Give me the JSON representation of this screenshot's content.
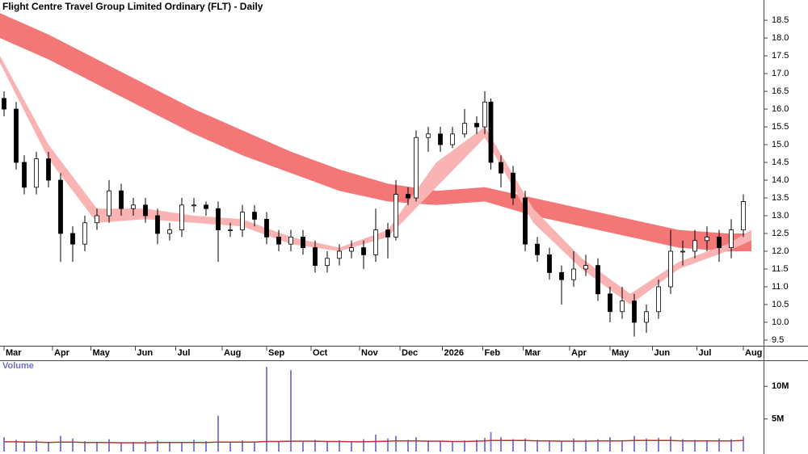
{
  "chart_data": [
    {
      "type": "candlestick",
      "title": "Flight Centre Travel Group Limited Ordinary (FLT) - Daily",
      "x": [
        2,
        8,
        12,
        18,
        24,
        30,
        36,
        42,
        48,
        54,
        60,
        66,
        72,
        78,
        84,
        90,
        96,
        102,
        108,
        114,
        120,
        126,
        132,
        138,
        144,
        150,
        156,
        162,
        168,
        174,
        180,
        186,
        192,
        196,
        202,
        206,
        212,
        218,
        224,
        230,
        236,
        240,
        243,
        248,
        254,
        260,
        266,
        272,
        278,
        284,
        290,
        296,
        302,
        308,
        314,
        320,
        326,
        332,
        338,
        344,
        350,
        356,
        362,
        368
      ],
      "open": [
        16.3,
        16.0,
        14.5,
        13.8,
        14.6,
        14.0,
        12.5,
        12.2,
        12.8,
        13.0,
        13.7,
        13.2,
        13.3,
        13.0,
        12.5,
        12.6,
        13.3,
        13.3,
        13.2,
        12.6,
        12.6,
        13.1,
        12.9,
        12.4,
        12.2,
        12.4,
        12.1,
        11.6,
        11.8,
        12.0,
        12.1,
        11.9,
        12.6,
        12.4,
        13.6,
        13.5,
        15.2,
        15.3,
        15.0,
        15.3,
        15.6,
        15.5,
        16.2,
        14.5,
        14.2,
        13.5,
        12.2,
        11.9,
        11.4,
        11.2,
        11.5,
        11.6,
        10.8,
        10.3,
        10.6,
        10.0,
        10.3,
        11.0,
        12.0,
        12.0,
        12.3,
        12.4,
        12.1,
        12.6
      ],
      "high": [
        16.5,
        16.2,
        14.7,
        14.8,
        14.8,
        14.2,
        12.7,
        13.0,
        13.2,
        14.0,
        13.9,
        13.5,
        13.5,
        13.2,
        12.8,
        13.5,
        13.5,
        13.4,
        13.4,
        12.8,
        13.3,
        13.3,
        13.1,
        12.6,
        12.6,
        12.6,
        12.3,
        12.0,
        12.2,
        12.3,
        12.3,
        13.2,
        12.8,
        14.0,
        13.8,
        15.4,
        15.5,
        15.5,
        15.5,
        16.0,
        15.8,
        16.5,
        16.3,
        14.7,
        14.4,
        13.7,
        12.4,
        12.1,
        11.6,
        12.0,
        11.9,
        11.8,
        11.0,
        11.0,
        10.8,
        10.5,
        11.2,
        12.6,
        12.3,
        12.6,
        12.7,
        12.6,
        12.9,
        13.6
      ],
      "low": [
        15.8,
        14.3,
        13.6,
        13.6,
        13.8,
        11.7,
        11.7,
        12.0,
        12.6,
        12.8,
        13.0,
        13.0,
        12.8,
        12.2,
        12.3,
        12.4,
        13.1,
        13.0,
        11.7,
        12.4,
        12.4,
        12.7,
        12.2,
        12.0,
        12.0,
        11.9,
        11.4,
        11.4,
        11.6,
        11.8,
        11.5,
        11.7,
        11.8,
        12.3,
        13.3,
        13.4,
        14.8,
        14.8,
        14.9,
        15.2,
        15.3,
        15.3,
        14.3,
        13.8,
        13.3,
        12.0,
        11.7,
        11.2,
        10.5,
        11.0,
        11.3,
        10.6,
        10.0,
        10.1,
        9.6,
        9.7,
        10.1,
        10.8,
        11.6,
        11.8,
        12.0,
        11.7,
        11.8,
        12.4
      ],
      "close": [
        16.0,
        14.5,
        13.8,
        14.6,
        14.0,
        12.5,
        12.2,
        12.8,
        13.0,
        13.7,
        13.2,
        13.3,
        13.0,
        12.5,
        12.6,
        13.3,
        13.3,
        13.2,
        12.6,
        12.6,
        13.1,
        12.9,
        12.4,
        12.2,
        12.4,
        12.1,
        11.6,
        11.8,
        12.0,
        12.1,
        11.9,
        12.6,
        12.4,
        13.6,
        13.5,
        15.2,
        15.3,
        15.0,
        15.3,
        15.6,
        15.5,
        16.2,
        14.5,
        14.2,
        13.5,
        12.2,
        11.9,
        11.4,
        11.2,
        11.5,
        11.6,
        10.8,
        10.3,
        10.6,
        10.0,
        10.3,
        11.0,
        12.0,
        12.0,
        12.3,
        12.4,
        12.1,
        12.6,
        13.4
      ],
      "band_x": [
        0,
        24,
        48,
        72,
        96,
        120,
        144,
        168,
        192,
        216,
        240,
        264,
        288,
        312,
        336,
        360,
        372
      ],
      "bands": [
        {
          "color": "#f47777",
          "upper": [
            18.7,
            18.1,
            17.4,
            16.7,
            16.0,
            15.4,
            14.8,
            14.3,
            13.9,
            13.7,
            13.8,
            13.5,
            13.2,
            12.9,
            12.6,
            12.5,
            12.5
          ],
          "lower": [
            18.0,
            17.4,
            16.7,
            16.0,
            15.3,
            14.7,
            14.2,
            13.7,
            13.4,
            13.3,
            13.4,
            13.0,
            12.7,
            12.4,
            12.1,
            12.0,
            12.0
          ]
        },
        {
          "color": "#f9b3b3",
          "upper": [
            17.5,
            15.0,
            13.2,
            13.2,
            13.0,
            12.9,
            12.4,
            12.1,
            12.6,
            14.5,
            15.5,
            13.2,
            11.8,
            10.8,
            11.7,
            12.2,
            12.6
          ],
          "lower": [
            17.3,
            14.6,
            12.8,
            12.9,
            12.8,
            12.7,
            12.2,
            12.0,
            12.4,
            13.8,
            15.2,
            12.8,
            11.5,
            10.5,
            11.5,
            12.0,
            12.3
          ]
        }
      ],
      "xlim": [
        0,
        378
      ],
      "xticks": [
        {
          "value": 2,
          "label": "Mar"
        },
        {
          "value": 26,
          "label": "Apr"
        },
        {
          "value": 45,
          "label": "May"
        },
        {
          "value": 67,
          "label": "Jun"
        },
        {
          "value": 87,
          "label": "Jul"
        },
        {
          "value": 110,
          "label": "Aug"
        },
        {
          "value": 132,
          "label": "Sep"
        },
        {
          "value": 154,
          "label": "Oct"
        },
        {
          "value": 178,
          "label": "Nov"
        },
        {
          "value": 198,
          "label": "Dec"
        },
        {
          "value": 219,
          "label": "2026"
        },
        {
          "value": 239,
          "label": "Feb"
        },
        {
          "value": 259,
          "label": "Mar"
        },
        {
          "value": 282,
          "label": "Apr"
        },
        {
          "value": 302,
          "label": "May"
        },
        {
          "value": 323,
          "label": "Jun"
        },
        {
          "value": 345,
          "label": "Jul"
        },
        {
          "value": 368,
          "label": "Aug"
        }
      ],
      "ylim": [
        9.34,
        19.07
      ],
      "yticks": [
        9.5,
        {
          "value": 10,
          "label": "10.0"
        },
        10.5,
        {
          "value": 11,
          "label": "11.0"
        },
        11.5,
        {
          "value": 12,
          "label": "12.0"
        },
        12.5,
        {
          "value": 13,
          "label": "13.0"
        },
        13.5,
        {
          "value": 14,
          "label": "14.0"
        },
        14.5,
        {
          "value": 15,
          "label": "15.0"
        },
        15.5,
        {
          "value": 16,
          "label": "16.0"
        },
        16.5,
        {
          "value": 17,
          "label": "17.0"
        },
        17.5,
        {
          "value": 18,
          "label": "18.0"
        },
        18.5
      ]
    },
    {
      "type": "bar",
      "title": "Volume",
      "color": "#8080d8",
      "ma_color": "#c03030",
      "values": [
        2200000,
        1800000,
        1600000,
        1700000,
        1500000,
        2400000,
        2000000,
        1600000,
        1500000,
        1900000,
        1400000,
        1500000,
        1600000,
        1700000,
        1500000,
        1400000,
        1800000,
        1600000,
        5500000,
        1500000,
        1700000,
        1400000,
        13000000,
        1600000,
        12500000,
        1500000,
        1800000,
        1600000,
        1700000,
        1500000,
        1900000,
        2600000,
        2000000,
        2400000,
        1800000,
        2200000,
        1700000,
        1600000,
        1500000,
        1700000,
        1800000,
        2100000,
        3000000,
        2200000,
        1900000,
        2000000,
        1800000,
        1700000,
        1600000,
        2000000,
        1800000,
        1900000,
        2200000,
        1700000,
        2400000,
        2000000,
        2100000,
        2300000,
        1900000,
        1800000,
        1700000,
        2000000,
        1900000,
        2300000
      ],
      "ma": [
        1500000,
        1500000,
        1450000,
        1450000,
        1400000,
        1450000,
        1450000,
        1400000,
        1400000,
        1400000,
        1350000,
        1350000,
        1350000,
        1400000,
        1400000,
        1400000,
        1400000,
        1400000,
        1450000,
        1450000,
        1450000,
        1450000,
        1550000,
        1550000,
        1600000,
        1600000,
        1600000,
        1550000,
        1550000,
        1500000,
        1500000,
        1550000,
        1600000,
        1650000,
        1650000,
        1650000,
        1600000,
        1600000,
        1550000,
        1550000,
        1600000,
        1650000,
        1700000,
        1700000,
        1700000,
        1700000,
        1650000,
        1650000,
        1600000,
        1600000,
        1600000,
        1650000,
        1650000,
        1650000,
        1700000,
        1700000,
        1700000,
        1700000,
        1650000,
        1650000,
        1650000,
        1650000,
        1650000,
        1700000
      ],
      "ylim": [
        0,
        14000000
      ],
      "yticks": [
        {
          "value": 5000000,
          "label": "5M"
        },
        {
          "value": 10000000,
          "label": "10M"
        }
      ]
    }
  ]
}
